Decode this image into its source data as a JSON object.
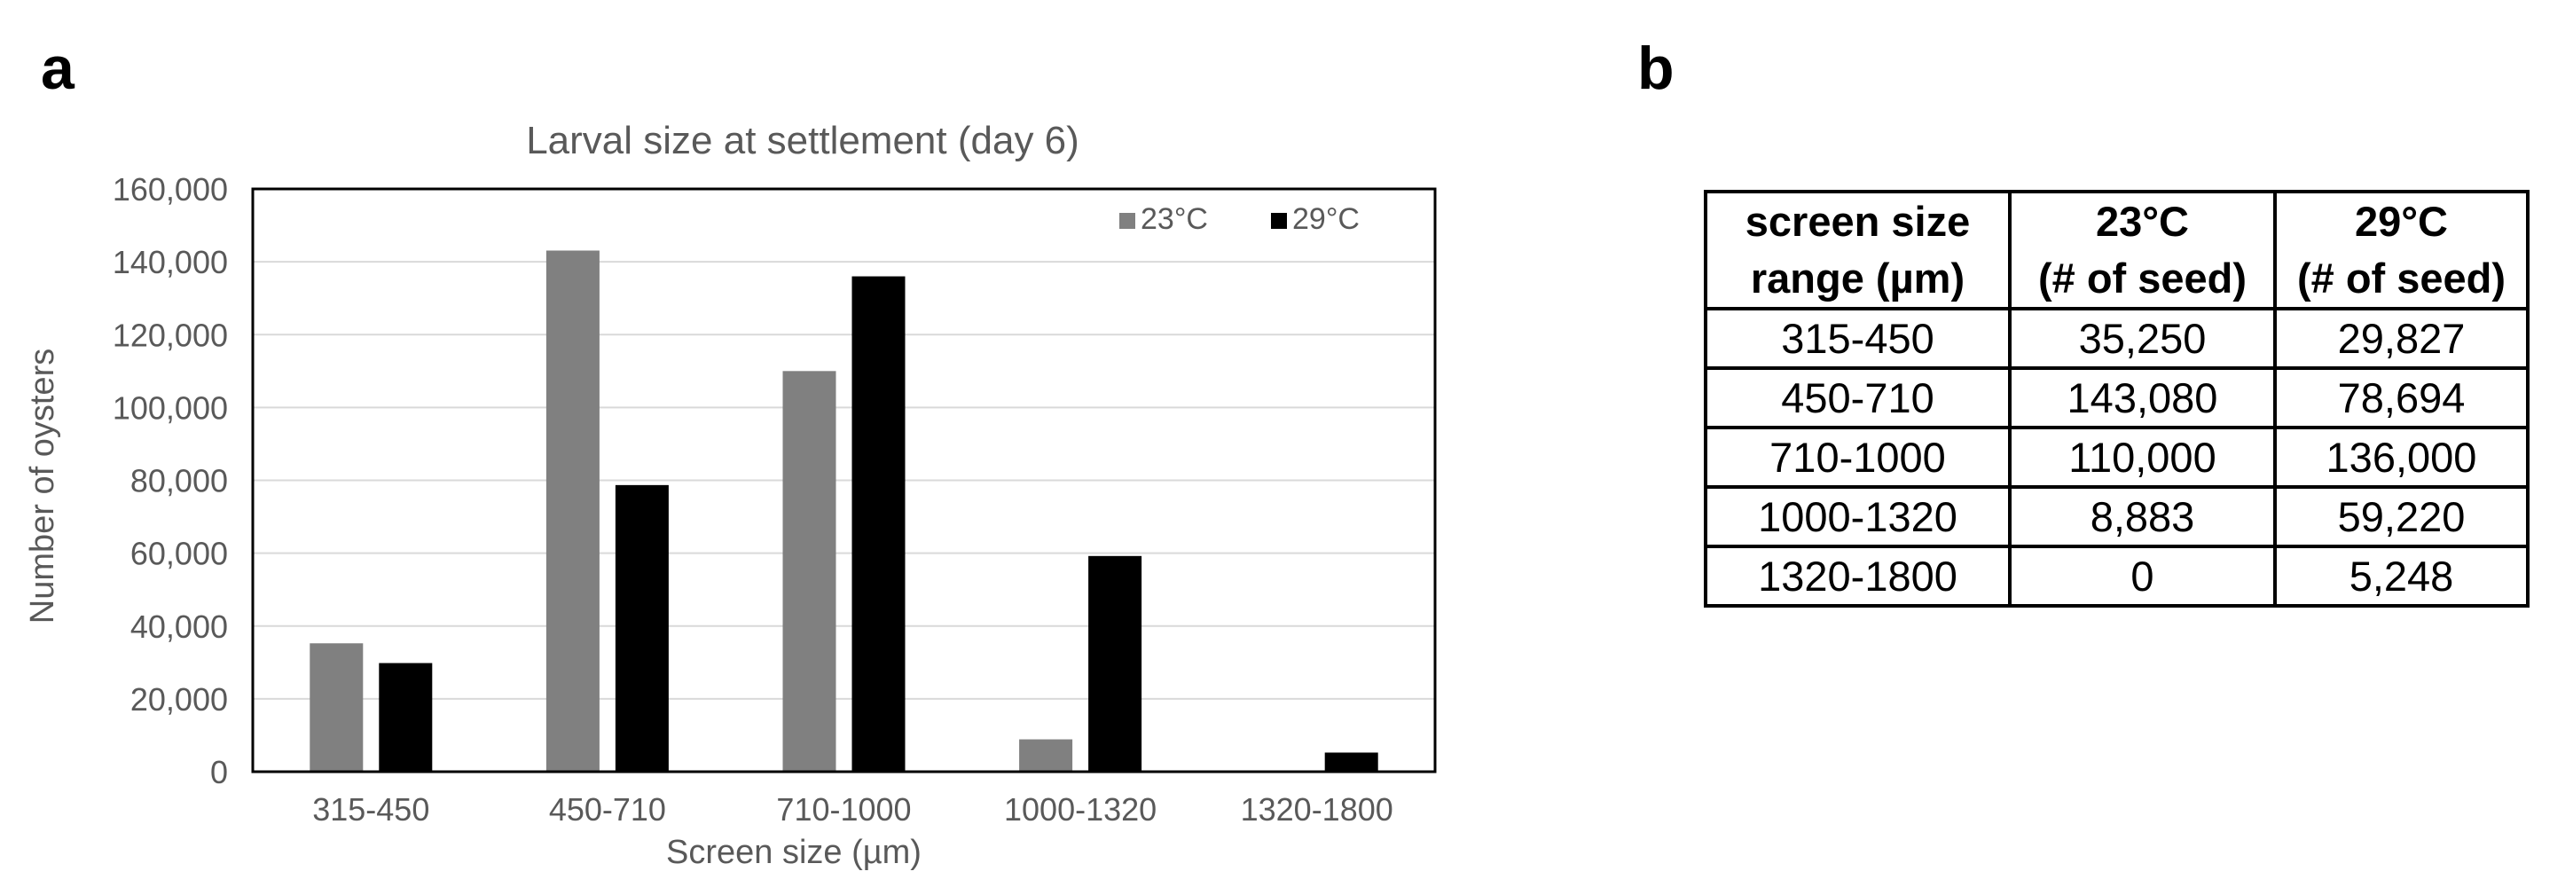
{
  "panels": {
    "a": "a",
    "b": "b"
  },
  "chart_data": {
    "type": "bar",
    "title": "Larval size at settlement (day 6)",
    "xlabel": "Screen size (µm)",
    "ylabel": "Number of oysters",
    "categories": [
      "315-450",
      "450-710",
      "710-1000",
      "1000-1320",
      "1320-1800"
    ],
    "series": [
      {
        "name": "23°C",
        "color": "#808080",
        "values": [
          35250,
          143080,
          110000,
          8883,
          0
        ]
      },
      {
        "name": "29°C",
        "color": "#000000",
        "values": [
          29827,
          78694,
          136000,
          59220,
          5248
        ]
      }
    ],
    "ylim": [
      0,
      160000
    ],
    "yticks": [
      0,
      20000,
      40000,
      60000,
      80000,
      100000,
      120000,
      140000,
      160000
    ],
    "ytick_labels": [
      "0",
      "20,000",
      "40,000",
      "60,000",
      "80,000",
      "100,000",
      "120,000",
      "140,000",
      "160,000"
    ],
    "grid": true,
    "legend_position": "top-right"
  },
  "table": {
    "headers": [
      [
        "screen size",
        "range (µm)"
      ],
      [
        "23°C",
        "(# of seed)"
      ],
      [
        "29°C",
        "(# of seed)"
      ]
    ],
    "rows": [
      [
        "315-450",
        "35,250",
        "29,827"
      ],
      [
        "450-710",
        "143,080",
        "78,694"
      ],
      [
        "710-1000",
        "110,000",
        "136,000"
      ],
      [
        "1000-1320",
        "8,883",
        "59,220"
      ],
      [
        "1320-1800",
        "0",
        "5,248"
      ]
    ]
  }
}
